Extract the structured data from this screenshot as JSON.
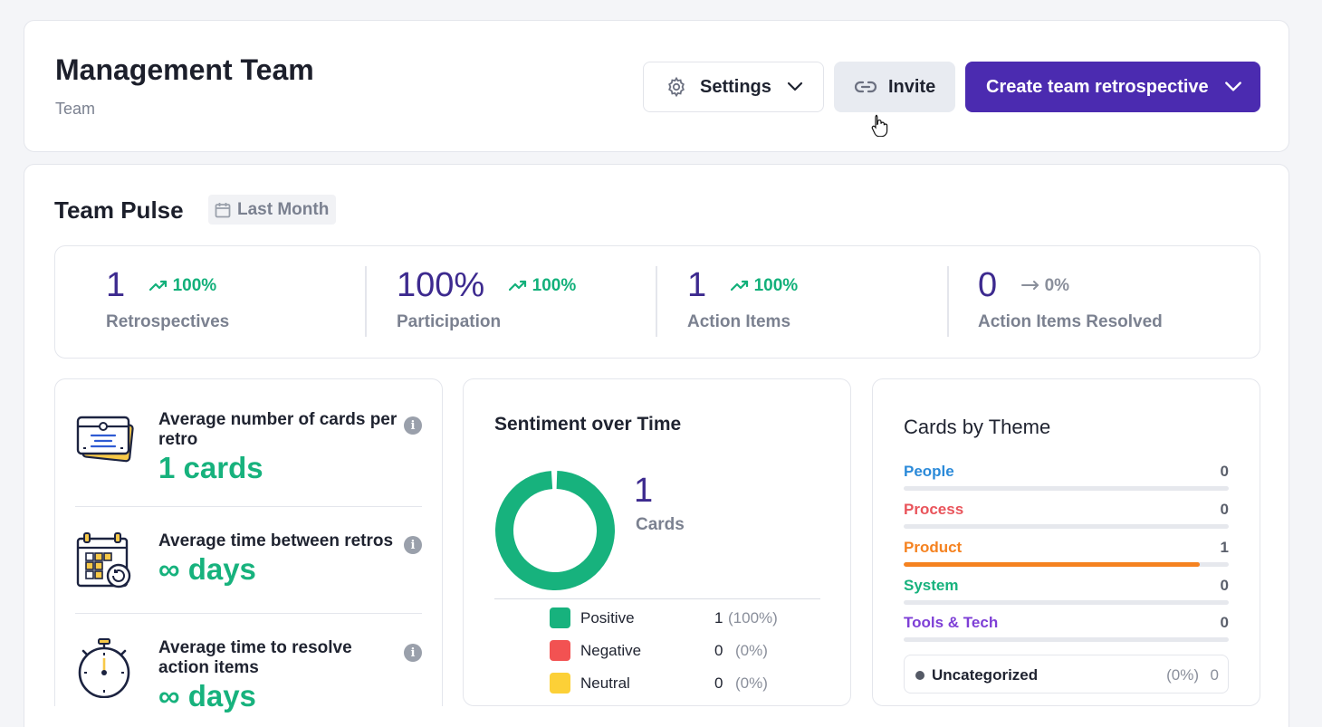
{
  "header": {
    "title": "Management Team",
    "subtitle": "Team",
    "settings_label": "Settings",
    "invite_label": "Invite",
    "create_label": "Create team retrospective"
  },
  "pulse": {
    "title": "Team Pulse",
    "period": "Last Month",
    "stats": [
      {
        "value": "1",
        "trend": "100%",
        "label": "Retrospectives",
        "direction": "up"
      },
      {
        "value": "100%",
        "trend": "100%",
        "label": "Participation",
        "direction": "up"
      },
      {
        "value": "1",
        "trend": "100%",
        "label": "Action Items",
        "direction": "up"
      },
      {
        "value": "0",
        "trend": "0%",
        "label": "Action Items Resolved",
        "direction": "flat"
      }
    ]
  },
  "averages": [
    {
      "question": "Average number of cards per retro",
      "answer": "1 cards",
      "icon": "cards-illustration-icon"
    },
    {
      "question": "Average time between retros",
      "answer": "∞ days",
      "icon": "calendar-illustration-icon"
    },
    {
      "question": "Average time to resolve action items",
      "answer": "∞ days",
      "icon": "stopwatch-illustration-icon"
    }
  ],
  "sentiment": {
    "title": "Sentiment over Time",
    "total": "1",
    "total_label": "Cards",
    "items": [
      {
        "name": "Positive",
        "count": "1",
        "percent": "(100%)",
        "color": "#17b27d"
      },
      {
        "name": "Negative",
        "count": "0",
        "percent": "(0%)",
        "color": "#f25252"
      },
      {
        "name": "Neutral",
        "count": "0",
        "percent": "(0%)",
        "color": "#fcd037"
      }
    ]
  },
  "themes": {
    "title": "Cards by Theme",
    "items": [
      {
        "name": "People",
        "count": "0",
        "fraction": 0,
        "color": "#2b8ad9"
      },
      {
        "name": "Process",
        "count": "0",
        "fraction": 0,
        "color": "#e9545b"
      },
      {
        "name": "Product",
        "count": "1",
        "fraction": 0.91,
        "color": "#f58220"
      },
      {
        "name": "System",
        "count": "0",
        "fraction": 0,
        "color": "#17b27d"
      },
      {
        "name": "Tools & Tech",
        "count": "0",
        "fraction": 0,
        "color": "#7e3fd6"
      }
    ],
    "uncategorized": {
      "name": "Uncategorized",
      "percent": "(0%)",
      "count": "0"
    }
  }
}
